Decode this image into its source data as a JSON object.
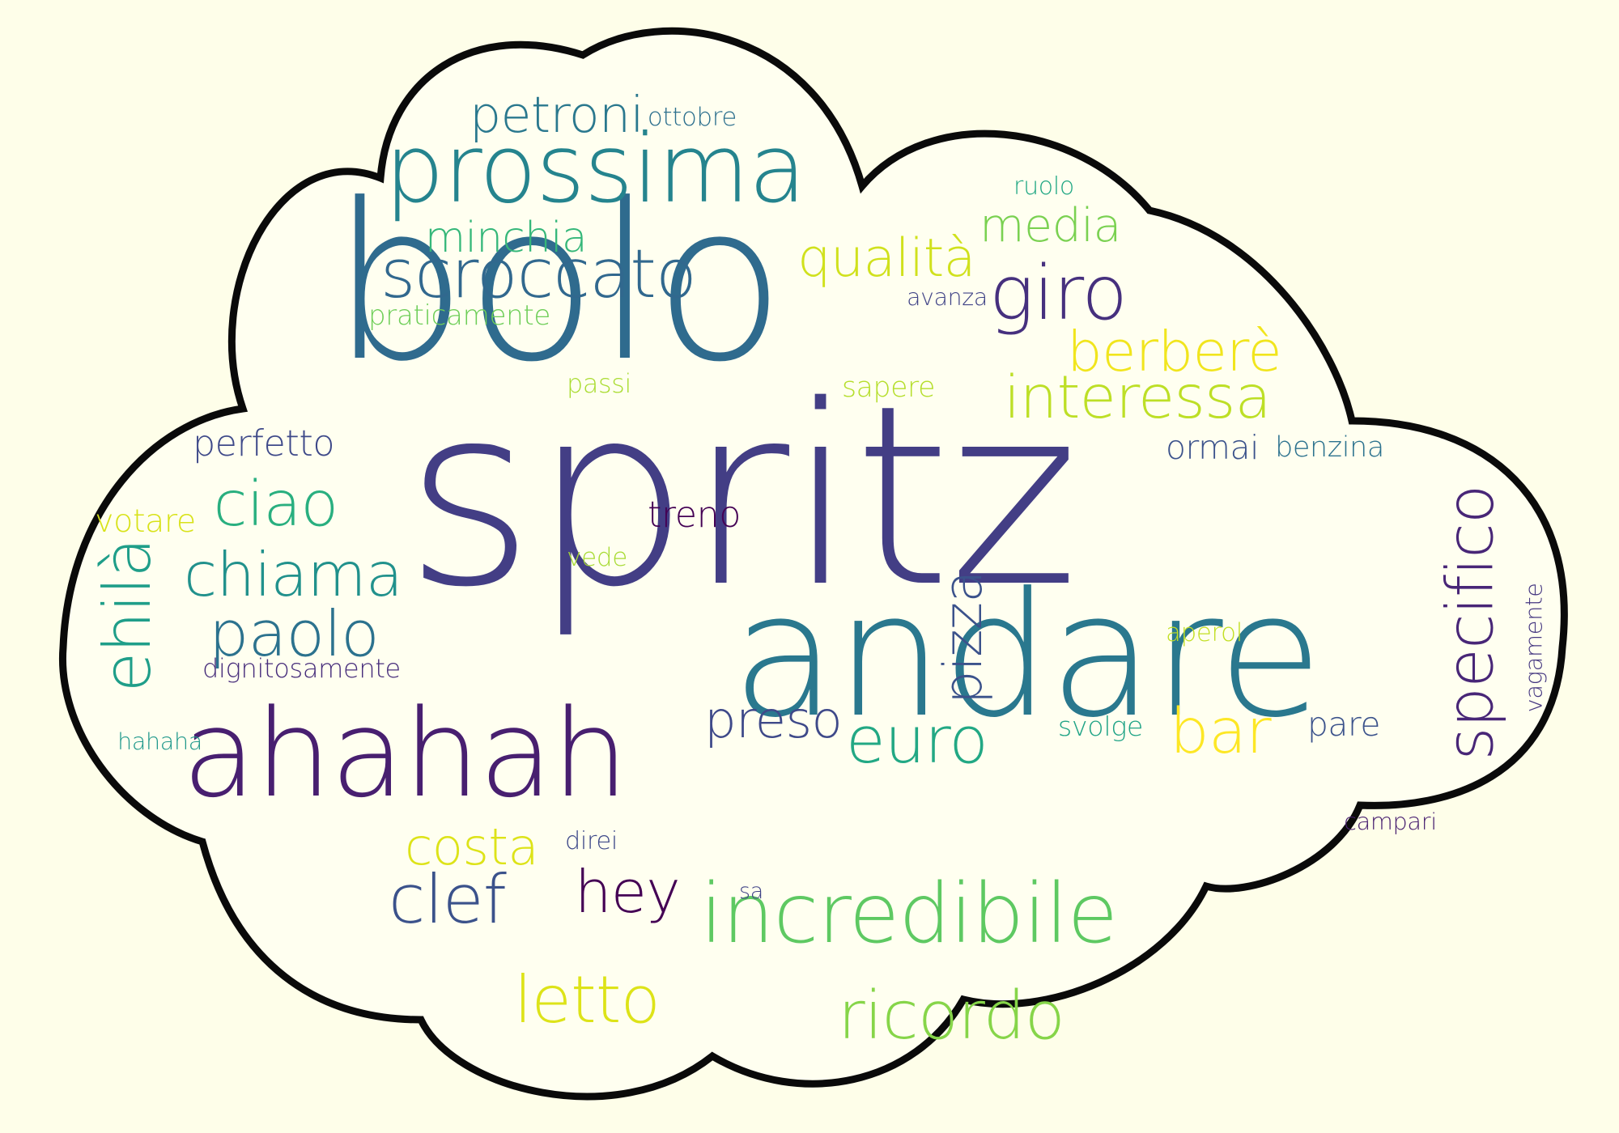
{
  "colors": {
    "background": "#fefee9",
    "cloud_fill": "#fffff0",
    "cloud_outline": "#0a0a0a"
  },
  "words": [
    {
      "id": "bolo",
      "text": "bolo",
      "color": "#2f6b8e"
    },
    {
      "id": "spritz",
      "text": "spritz",
      "color": "#433e85"
    },
    {
      "id": "andare",
      "text": "andare",
      "color": "#2a788e"
    },
    {
      "id": "ahahah",
      "text": "ahahah",
      "color": "#481f70"
    },
    {
      "id": "prossima",
      "text": "prossima",
      "color": "#25848e"
    },
    {
      "id": "incredibile",
      "text": "incredibile",
      "color": "#5ec962"
    },
    {
      "id": "scroccato",
      "text": "scroccato",
      "color": "#31688e"
    },
    {
      "id": "giro",
      "text": "giro",
      "color": "#46307e"
    },
    {
      "id": "specifico",
      "text": "specifico",
      "color": "#482677"
    },
    {
      "id": "interessa",
      "text": "interessa",
      "color": "#bddf26"
    },
    {
      "id": "ricordo",
      "text": "ricordo",
      "color": "#86d549"
    },
    {
      "id": "letto",
      "text": "letto",
      "color": "#dde318"
    },
    {
      "id": "qualita",
      "text": "qualità",
      "color": "#d0e11c"
    },
    {
      "id": "petroni",
      "text": "petroni",
      "color": "#2a788e"
    },
    {
      "id": "minchia",
      "text": "minchia",
      "color": "#35b779"
    },
    {
      "id": "media",
      "text": "media",
      "color": "#7ad151"
    },
    {
      "id": "berbere",
      "text": "berberè",
      "color": "#f1e51d"
    },
    {
      "id": "chiama",
      "text": "chiama",
      "color": "#21918c"
    },
    {
      "id": "paolo",
      "text": "paolo",
      "color": "#2c728e"
    },
    {
      "id": "ciao",
      "text": "ciao",
      "color": "#29af7f"
    },
    {
      "id": "hey",
      "text": "hey",
      "color": "#440154"
    },
    {
      "id": "clef",
      "text": "clef",
      "color": "#3b528b"
    },
    {
      "id": "euro",
      "text": "euro",
      "color": "#22a884"
    },
    {
      "id": "costa",
      "text": "costa",
      "color": "#dde318"
    },
    {
      "id": "preso",
      "text": "preso",
      "color": "#3e4989"
    },
    {
      "id": "bar",
      "text": "bar",
      "color": "#fde725"
    },
    {
      "id": "ehila",
      "text": "ehilà",
      "color": "#1f9e89"
    },
    {
      "id": "pizza",
      "text": "pizza",
      "color": "#3b528b"
    },
    {
      "id": "perfetto",
      "text": "perfetto",
      "color": "#3e4989"
    },
    {
      "id": "ormai",
      "text": "ormai",
      "color": "#3b528b"
    },
    {
      "id": "benzina",
      "text": "benzina",
      "color": "#2c728e"
    },
    {
      "id": "votare",
      "text": "votare",
      "color": "#d8e219"
    },
    {
      "id": "treno",
      "text": "treno",
      "color": "#440154"
    },
    {
      "id": "praticamente",
      "text": "praticamente",
      "color": "#6ece58"
    },
    {
      "id": "avanza",
      "text": "avanza",
      "color": "#414487"
    },
    {
      "id": "passi",
      "text": "passi",
      "color": "#aadc32"
    },
    {
      "id": "sapere",
      "text": "sapere",
      "color": "#b5de2b"
    },
    {
      "id": "ottobre",
      "text": "ottobre",
      "color": "#2d708e"
    },
    {
      "id": "ruolo",
      "text": "ruolo",
      "color": "#22a884"
    },
    {
      "id": "vede",
      "text": "vede",
      "color": "#a8db34"
    },
    {
      "id": "aperol",
      "text": "aperol",
      "color": "#c2df23"
    },
    {
      "id": "dignitosamente",
      "text": "dignitosamente",
      "color": "#472d7b"
    },
    {
      "id": "hahaha",
      "text": "hahaha",
      "color": "#1f988b"
    },
    {
      "id": "svolge",
      "text": "svolge",
      "color": "#20a486"
    },
    {
      "id": "pare",
      "text": "pare",
      "color": "#3b528b"
    },
    {
      "id": "direi",
      "text": "direi",
      "color": "#3e4989"
    },
    {
      "id": "sa",
      "text": "sa",
      "color": "#414487"
    },
    {
      "id": "campari",
      "text": "campari",
      "color": "#481f70"
    },
    {
      "id": "vagamente",
      "text": "vagamente",
      "color": "#453781"
    }
  ]
}
